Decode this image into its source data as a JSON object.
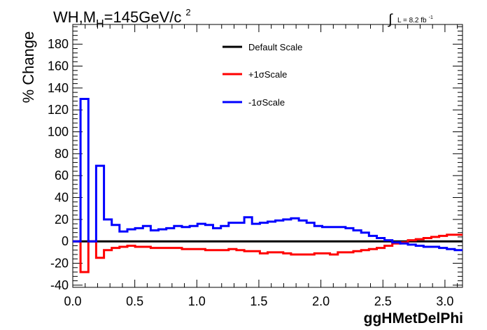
{
  "chart_data": {
    "type": "line",
    "title": "WH,M",
    "title_sub": "H",
    "title_tail": "=145GeV/c",
    "title_sup": "2",
    "lumi_symbol": "∫",
    "lumi_text": "L = 8.2 fb",
    "lumi_sup": "-1",
    "xlabel": "ggHMetDelPhi",
    "ylabel": "% Change",
    "xlim": [
      0,
      3.1416
    ],
    "ylim": [
      -42,
      198
    ],
    "x_ticks": [
      "0.0",
      "0.5",
      "1.0",
      "1.5",
      "2.0",
      "2.5",
      "3.0"
    ],
    "y_ticks": [
      "-40",
      "-20",
      "0",
      "20",
      "40",
      "60",
      "80",
      "100",
      "120",
      "140",
      "160",
      "180"
    ],
    "legend_position": "top-center",
    "bin_edges": [
      0,
      0.0628,
      0.1257,
      0.1885,
      0.2513,
      0.3142,
      0.377,
      0.4398,
      0.5027,
      0.5655,
      0.6283,
      0.6912,
      0.754,
      0.8168,
      0.8796,
      0.9425,
      1.0053,
      1.0681,
      1.131,
      1.1938,
      1.2566,
      1.3195,
      1.3823,
      1.4451,
      1.508,
      1.5708,
      1.6336,
      1.6965,
      1.7593,
      1.8221,
      1.885,
      1.9478,
      2.0106,
      2.0735,
      2.1363,
      2.1991,
      2.2619,
      2.3248,
      2.3876,
      2.4504,
      2.5133,
      2.5761,
      2.6389,
      2.7018,
      2.7646,
      2.8274,
      2.8903,
      2.9531,
      3.0159,
      3.0788,
      3.1416
    ],
    "series": [
      {
        "name": "Default Scale",
        "color": "#000000",
        "values": [
          0,
          0,
          0,
          0,
          0,
          0,
          0,
          0,
          0,
          0,
          0,
          0,
          0,
          0,
          0,
          0,
          0,
          0,
          0,
          0,
          0,
          0,
          0,
          0,
          0,
          0,
          0,
          0,
          0,
          0,
          0,
          0,
          0,
          0,
          0,
          0,
          0,
          0,
          0,
          0,
          0,
          0,
          0,
          0,
          0,
          0,
          0,
          0,
          0,
          0
        ]
      },
      {
        "name": "+1σScale",
        "color": "#ff0000",
        "values": [
          0,
          -28,
          0,
          -15,
          -8,
          -6,
          -5,
          -4,
          -5,
          -5,
          -6,
          -6,
          -6,
          -6,
          -7,
          -7,
          -7,
          -8,
          -8,
          -8,
          -7,
          -8,
          -9,
          -9,
          -11,
          -10,
          -10,
          -11,
          -12,
          -12,
          -12,
          -11,
          -11,
          -12,
          -10,
          -10,
          -9,
          -8,
          -7,
          -6,
          -4,
          -2,
          -1,
          1,
          2,
          3,
          4,
          5,
          6,
          6
        ]
      },
      {
        "name": "-1σScale",
        "color": "#0000ff",
        "values": [
          0,
          130,
          0,
          69,
          20,
          15,
          9,
          11,
          12,
          14,
          10,
          11,
          12,
          14,
          13,
          14,
          16,
          15,
          12,
          14,
          17,
          17,
          22,
          16,
          17,
          18,
          19,
          20,
          21,
          19,
          17,
          14,
          13,
          13,
          13,
          12,
          10,
          8,
          5,
          3,
          1,
          -1,
          -2,
          -3,
          -4,
          -5,
          -5,
          -6,
          -7,
          -8
        ]
      }
    ]
  }
}
